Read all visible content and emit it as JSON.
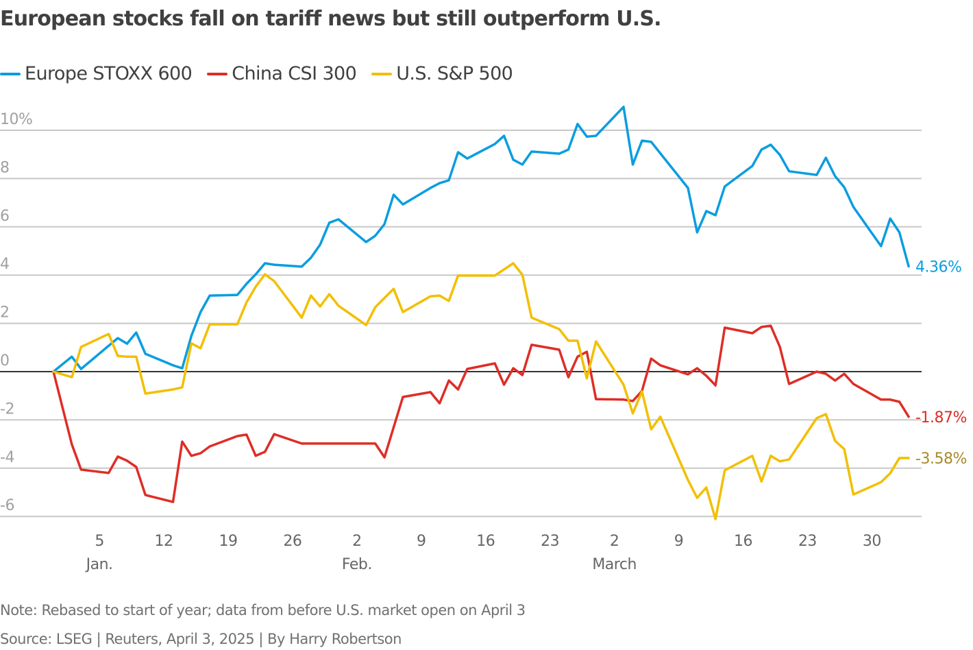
{
  "chart_data": {
    "type": "line",
    "title": "European stocks fall on tariff news but still outperform U.S.",
    "xlabel": "",
    "ylabel": "",
    "ylim": [
      -6,
      10
    ],
    "y_ticks": [
      {
        "value": 10,
        "label": "10%"
      },
      {
        "value": 8,
        "label": "8"
      },
      {
        "value": 6,
        "label": "6"
      },
      {
        "value": 4,
        "label": "4"
      },
      {
        "value": 2,
        "label": "2"
      },
      {
        "value": 0,
        "label": "0"
      },
      {
        "value": -2,
        "label": "-2"
      },
      {
        "value": -4,
        "label": "-4"
      },
      {
        "value": -6,
        "label": "-6"
      }
    ],
    "x_unit": "days since Dec 31, 2024",
    "xlim": [
      0,
      94
    ],
    "x_ticks": [
      {
        "day": 5,
        "label": "5"
      },
      {
        "day": 12,
        "label": "12"
      },
      {
        "day": 19,
        "label": "19"
      },
      {
        "day": 26,
        "label": "26"
      },
      {
        "day": 33,
        "label": "2"
      },
      {
        "day": 40,
        "label": "9"
      },
      {
        "day": 47,
        "label": "16"
      },
      {
        "day": 54,
        "label": "23"
      },
      {
        "day": 61,
        "label": "2"
      },
      {
        "day": 68,
        "label": "9"
      },
      {
        "day": 75,
        "label": "16"
      },
      {
        "day": 82,
        "label": "23"
      },
      {
        "day": 89,
        "label": "30"
      }
    ],
    "month_labels": [
      {
        "day": 5,
        "label": "Jan."
      },
      {
        "day": 33,
        "label": "Feb."
      },
      {
        "day": 61,
        "label": "March"
      }
    ],
    "legend_position": "top-left",
    "grid": true,
    "series": [
      {
        "name": "Europe STOXX 600",
        "color": "#0a9de0",
        "end_label": "4.36%",
        "end_label_color": "#0a9de0",
        "x": [
          0,
          2,
          3,
          7,
          8,
          9,
          10,
          13,
          14,
          15,
          16,
          17,
          20,
          21,
          22,
          23,
          24,
          27,
          28,
          29,
          30,
          31,
          34,
          35,
          36,
          37,
          38,
          41,
          42,
          43,
          44,
          45,
          48,
          49,
          50,
          51,
          52,
          55,
          56,
          57,
          58,
          59,
          62,
          63,
          64,
          65,
          69,
          70,
          71,
          72,
          73,
          76,
          77,
          78,
          79,
          80,
          83,
          84,
          85,
          86,
          87,
          90,
          91,
          92,
          93
        ],
        "values": [
          0,
          0.62,
          0.11,
          1.39,
          1.16,
          1.62,
          0.74,
          0.26,
          0.14,
          1.48,
          2.47,
          3.15,
          3.18,
          3.64,
          4.03,
          4.49,
          4.43,
          4.35,
          4.72,
          5.26,
          6.17,
          6.31,
          5.37,
          5.63,
          6.11,
          7.33,
          6.93,
          7.61,
          7.81,
          7.93,
          9.09,
          8.83,
          9.43,
          9.77,
          8.78,
          8.58,
          9.12,
          9.03,
          9.2,
          10.26,
          9.74,
          9.77,
          10.97,
          8.58,
          9.57,
          9.52,
          7.61,
          5.77,
          6.65,
          6.48,
          7.67,
          8.52,
          9.2,
          9.4,
          8.98,
          8.3,
          8.15,
          8.86,
          8.1,
          7.64,
          6.82,
          5.2,
          6.34,
          5.77,
          4.36
        ]
      },
      {
        "name": "China CSI 300",
        "color": "#de2d26",
        "end_label": "-1.87%",
        "end_label_color": "#de2d26",
        "x": [
          0,
          2,
          3,
          6,
          7,
          8,
          9,
          10,
          13,
          14,
          15,
          16,
          17,
          20,
          21,
          22,
          23,
          24,
          27,
          28,
          35,
          36,
          38,
          41,
          42,
          43,
          44,
          45,
          48,
          49,
          50,
          51,
          52,
          55,
          56,
          57,
          58,
          59,
          62,
          63,
          64,
          65,
          66,
          69,
          70,
          71,
          72,
          73,
          76,
          77,
          78,
          79,
          80,
          83,
          84,
          85,
          86,
          87,
          90,
          91,
          92,
          93
        ],
        "values": [
          0,
          -3.01,
          -4.06,
          -4.2,
          -3.52,
          -3.69,
          -3.95,
          -5.11,
          -5.4,
          -2.9,
          -3.49,
          -3.38,
          -3.1,
          -2.67,
          -2.61,
          -3.49,
          -3.32,
          -2.59,
          -2.98,
          -2.98,
          -2.98,
          -3.55,
          -1.05,
          -0.85,
          -1.31,
          -0.37,
          -0.74,
          0.11,
          0.34,
          -0.54,
          0.14,
          -0.14,
          1.11,
          0.91,
          -0.23,
          0.62,
          0.82,
          -1.14,
          -1.16,
          -1.22,
          -0.8,
          0.54,
          0.26,
          -0.11,
          0.14,
          -0.17,
          -0.57,
          1.82,
          1.59,
          1.85,
          1.9,
          1.02,
          -0.51,
          0,
          -0.09,
          -0.37,
          -0.09,
          -0.51,
          -1.16,
          -1.16,
          -1.25,
          -1.87
        ]
      },
      {
        "name": "U.S. S&P 500",
        "color": "#f2bf00",
        "end_label": "-3.58%",
        "end_label_color": "#a88a2a",
        "x": [
          0,
          2,
          3,
          6,
          7,
          8,
          9,
          10,
          13,
          14,
          15,
          16,
          17,
          20,
          21,
          22,
          23,
          24,
          27,
          28,
          29,
          30,
          31,
          34,
          35,
          37,
          38,
          41,
          42,
          43,
          44,
          48,
          50,
          51,
          52,
          55,
          56,
          57,
          58,
          59,
          62,
          63,
          64,
          65,
          66,
          69,
          70,
          71,
          72,
          73,
          76,
          77,
          78,
          79,
          80,
          83,
          84,
          85,
          86,
          87,
          90,
          91,
          92,
          93
        ],
        "values": [
          0,
          -0.23,
          1.02,
          1.56,
          0.65,
          0.62,
          0.62,
          -0.91,
          -0.74,
          -0.65,
          1.17,
          0.97,
          1.96,
          1.96,
          2.87,
          3.52,
          4.03,
          3.75,
          2.24,
          3.15,
          2.7,
          3.21,
          2.73,
          1.93,
          2.67,
          3.43,
          2.47,
          3.12,
          3.15,
          2.93,
          3.98,
          3.98,
          4.49,
          4.01,
          2.24,
          1.76,
          1.28,
          1.28,
          -0.28,
          1.25,
          -0.54,
          -1.73,
          -0.82,
          -2.39,
          -1.87,
          -4.49,
          -5.23,
          -4.8,
          -6.11,
          -4.09,
          -3.49,
          -4.55,
          -3.49,
          -3.72,
          -3.64,
          -1.93,
          -1.76,
          -2.87,
          -3.21,
          -5.09,
          -4.58,
          -4.21,
          -3.58,
          -3.58
        ]
      }
    ]
  },
  "notes": {
    "note": "Note: Rebased to start of year; data from before U.S. market open on April 3",
    "source": "Source: LSEG | Reuters, April 3, 2025 | By Harry Robertson"
  }
}
